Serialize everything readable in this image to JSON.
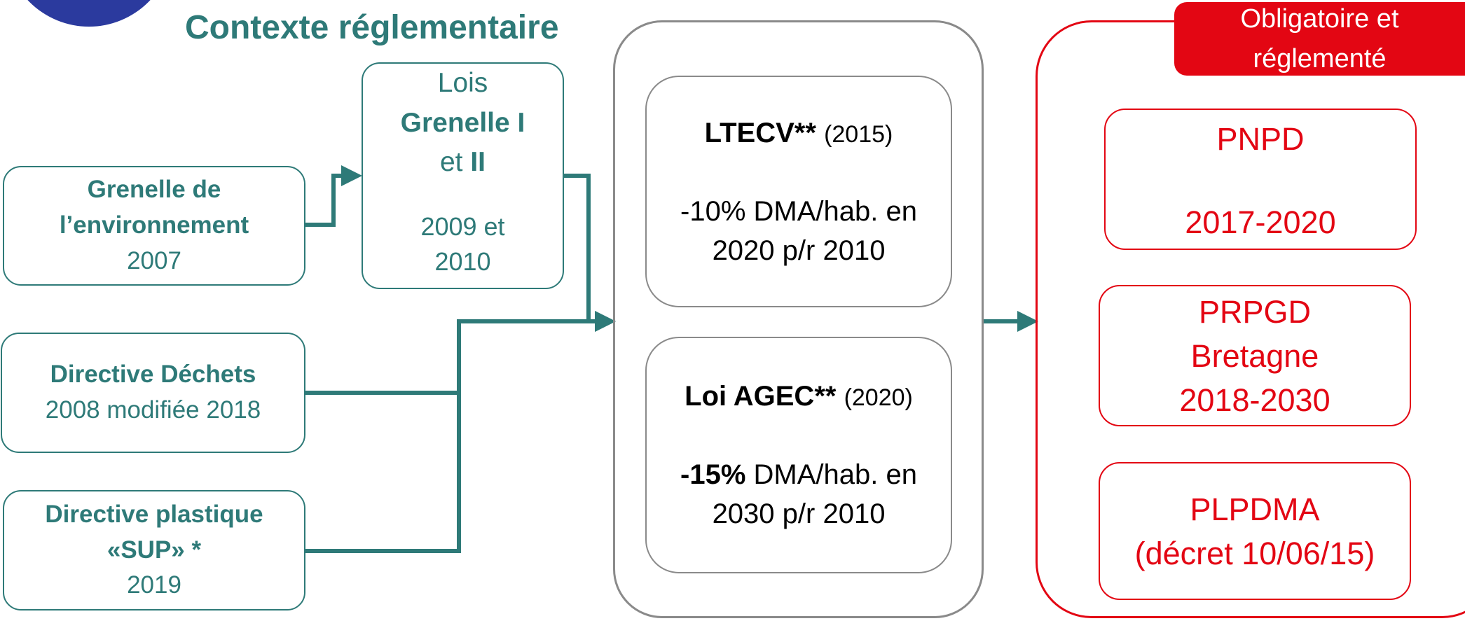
{
  "title": "Contexte réglementaire",
  "sources": [
    {
      "name": "Grenelle de l’environnement",
      "year": "2007"
    },
    {
      "name": "Directive Déchets",
      "year": "2008 modifiée 2018"
    },
    {
      "name": "Directive plastique «SUP» *",
      "year": "2019"
    }
  ],
  "grenelle_laws": {
    "line1": "Lois",
    "line2": "Grenelle I",
    "line3_a": "et",
    "line3_b": "II",
    "years": "2009 et 2010"
  },
  "national_laws": [
    {
      "name": "LTECV**",
      "year": "(2015)",
      "target_bold": "",
      "target": "-10% DMA/hab. en 2020 p/r 2010"
    },
    {
      "name": "Loi AGEC**",
      "year": "(2020)",
      "target_bold": "-15%",
      "target": "DMA/hab. en 2030 p/r 2010"
    }
  ],
  "mandatory": {
    "tag": "Obligatoire et réglementé",
    "plans": [
      {
        "name": "PNPD",
        "detail": "2017-2020"
      },
      {
        "name": "PRPGD Bretagne",
        "detail": "2018-2030"
      },
      {
        "name": "PLPDMA",
        "detail": "(décret 10/06/15)"
      }
    ]
  }
}
